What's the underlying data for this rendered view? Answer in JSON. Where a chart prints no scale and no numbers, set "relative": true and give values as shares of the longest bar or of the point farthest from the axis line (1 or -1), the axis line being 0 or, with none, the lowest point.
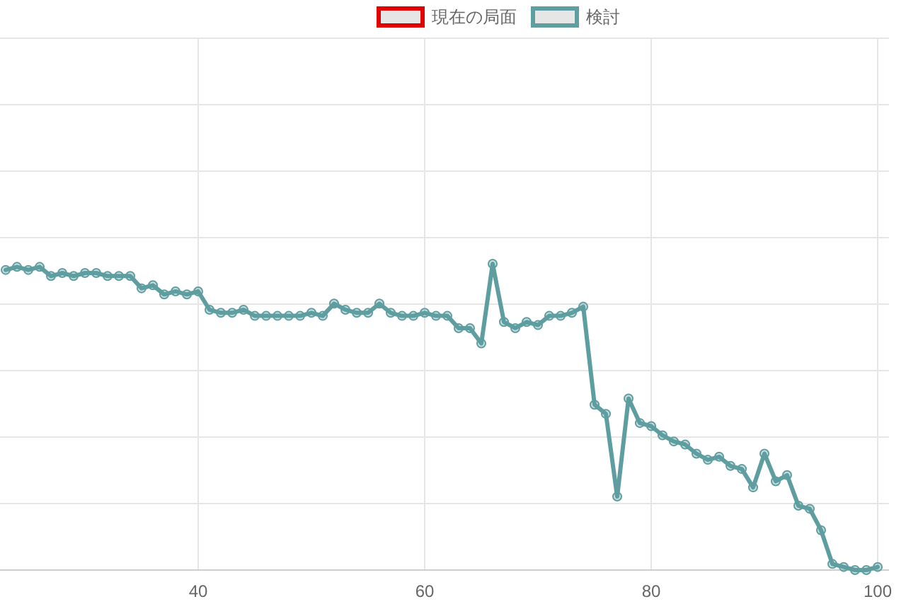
{
  "chart_data": {
    "type": "line",
    "relative": true,
    "x": [
      23,
      24,
      25,
      26,
      27,
      28,
      29,
      30,
      31,
      32,
      33,
      34,
      35,
      36,
      37,
      38,
      39,
      40,
      41,
      42,
      43,
      44,
      45,
      46,
      47,
      48,
      49,
      50,
      51,
      52,
      53,
      54,
      55,
      56,
      57,
      58,
      59,
      60,
      61,
      62,
      63,
      64,
      65,
      66,
      67,
      68,
      69,
      70,
      71,
      72,
      73,
      74,
      75,
      76,
      77,
      78,
      79,
      80,
      81,
      82,
      83,
      84,
      85,
      86,
      87,
      88,
      89,
      90,
      91,
      92,
      93,
      94,
      95,
      96,
      97,
      98,
      99,
      100
    ],
    "xlim": [
      22.5,
      101
    ],
    "xticks": [
      40,
      60,
      80,
      100
    ],
    "grid": true,
    "legend": "top",
    "marker": "circle",
    "line_style": "solid",
    "series": [
      {
        "name": "現在の局面",
        "color": "#e00000",
        "values": [
          null,
          null,
          null,
          null,
          null,
          null,
          null,
          null,
          null,
          null,
          null,
          null,
          null,
          null,
          null,
          null,
          null,
          null,
          null,
          null,
          null,
          null,
          null,
          null,
          null,
          null,
          null,
          null,
          null,
          null,
          null,
          null,
          null,
          null,
          null,
          null,
          null,
          null,
          null,
          null,
          null,
          null,
          null,
          null,
          null,
          null,
          null,
          null,
          null,
          null,
          null,
          null,
          null,
          null,
          null,
          null,
          null,
          null,
          null,
          null,
          null,
          null,
          null,
          null,
          null,
          null,
          null,
          null,
          null,
          null,
          null,
          null,
          null,
          null,
          null,
          null,
          null,
          null
        ]
      },
      {
        "name": "検討",
        "color": "#5f9ea0",
        "values": [
          0.98,
          0.99,
          0.98,
          0.99,
          0.96,
          0.97,
          0.96,
          0.97,
          0.97,
          0.96,
          0.96,
          0.96,
          0.92,
          0.93,
          0.9,
          0.91,
          0.9,
          0.91,
          0.85,
          0.84,
          0.84,
          0.85,
          0.83,
          0.83,
          0.83,
          0.83,
          0.83,
          0.84,
          0.83,
          0.87,
          0.85,
          0.84,
          0.84,
          0.87,
          0.84,
          0.83,
          0.83,
          0.84,
          0.83,
          0.83,
          0.79,
          0.79,
          0.74,
          1,
          0.81,
          0.79,
          0.81,
          0.8,
          0.83,
          0.83,
          0.84,
          0.86,
          0.54,
          0.51,
          0.24,
          0.56,
          0.48,
          0.47,
          0.44,
          0.42,
          0.41,
          0.38,
          0.36,
          0.37,
          0.34,
          0.33,
          0.27,
          0.38,
          0.29,
          0.31,
          0.21,
          0.2,
          0.13,
          0.02,
          0.01,
          0,
          0,
          0.01
        ]
      }
    ]
  }
}
